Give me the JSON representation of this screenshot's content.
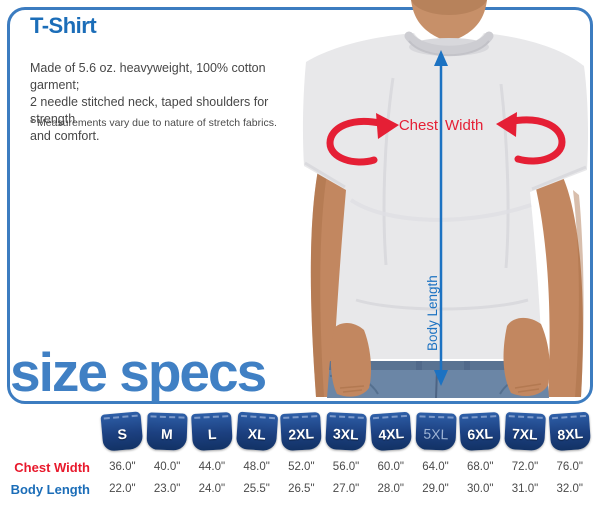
{
  "header": {
    "title": "T-Shirt",
    "description_lines": [
      "Made of 5.6 oz. heavyweight, 100% cotton garment;",
      "2 needle stitched neck, taped shoulders for strength",
      "and comfort."
    ],
    "footnote": "* Measurements vary due to nature of stretch fabrics."
  },
  "section": {
    "heading": "size specs"
  },
  "diagram": {
    "chest_width": {
      "word_left": "Chest",
      "word_right": "Width"
    },
    "body_length_label": "Body Length"
  },
  "size_table": {
    "sizes": [
      "S",
      "M",
      "L",
      "XL",
      "2XL",
      "3XL",
      "4XL",
      "5XL",
      "6XL",
      "7XL",
      "8XL"
    ],
    "muted_size": "5XL",
    "rows": [
      {
        "label": "Chest Width",
        "label_color": "#e8192c",
        "values": [
          "36.0\"",
          "40.0\"",
          "44.0\"",
          "48.0\"",
          "52.0\"",
          "56.0\"",
          "60.0\"",
          "64.0\"",
          "68.0\"",
          "72.0\"",
          "76.0\""
        ]
      },
      {
        "label": "Body Length",
        "label_color": "#1b6db8",
        "values": [
          "22.0\"",
          "23.0\"",
          "24.0\"",
          "25.5\"",
          "26.5\"",
          "27.0\"",
          "28.0\"",
          "29.0\"",
          "30.0\"",
          "31.0\"",
          "32.0\""
        ]
      }
    ]
  },
  "colors": {
    "frame_blue": "#3c7cc0",
    "title_blue": "#1b6db8",
    "heading_blue": "#4080c4",
    "tab_navy": "#1c4080",
    "measure_red": "#e51f35",
    "measure_blue": "#1c72c2",
    "body_text": "#474747"
  }
}
